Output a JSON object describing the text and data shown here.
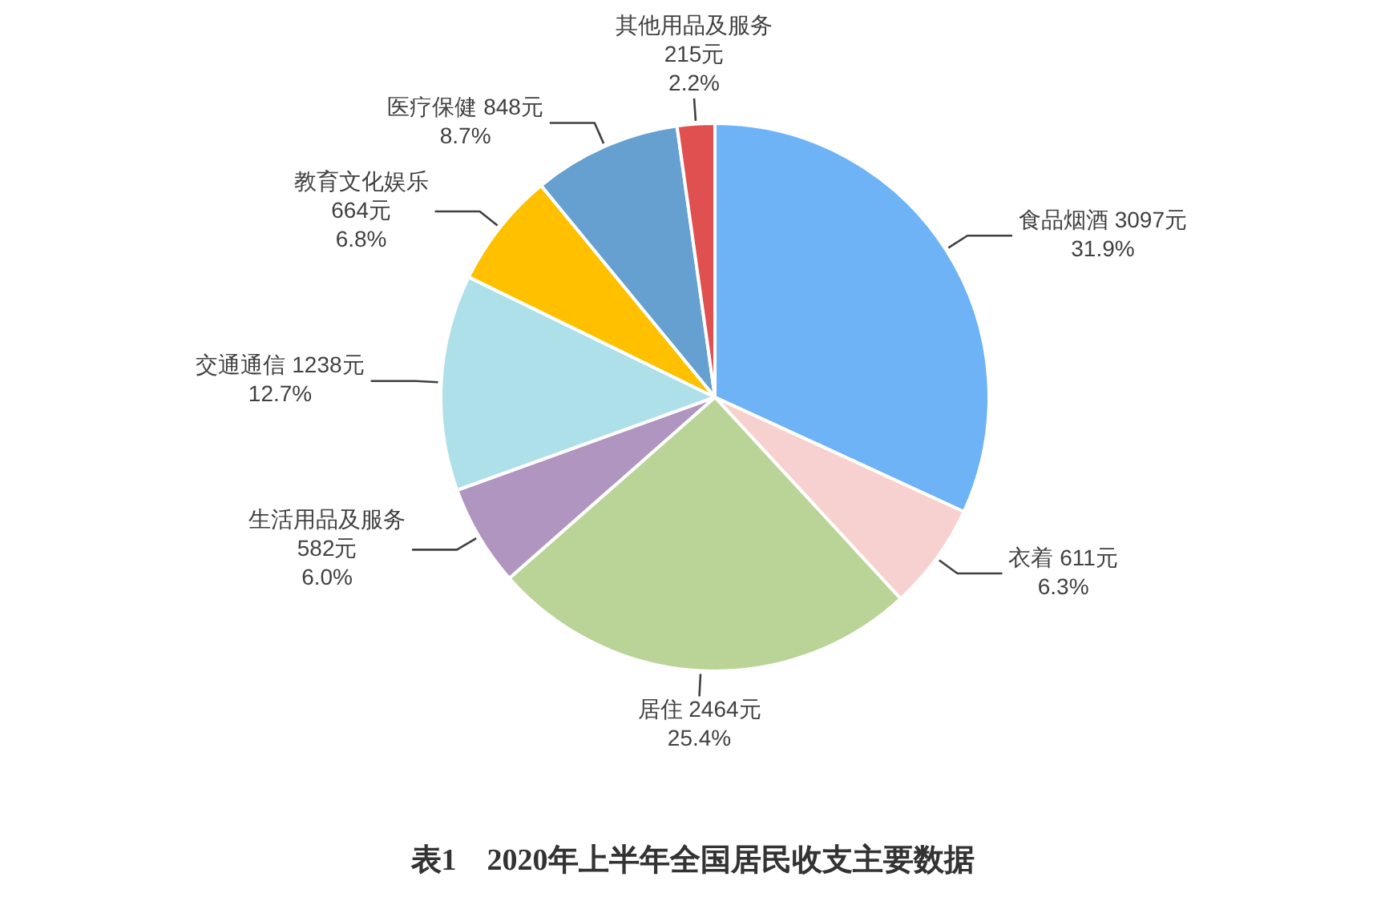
{
  "chart_data": {
    "type": "pie",
    "title": "表1　2020年上半年全国居民收支主要数据",
    "categories": [
      "食品烟酒",
      "衣着",
      "居住",
      "生活用品及服务",
      "交通通信",
      "教育文化娱乐",
      "医疗保健",
      "其他用品及服务"
    ],
    "values": [
      3097,
      611,
      2464,
      582,
      1238,
      664,
      848,
      215
    ],
    "colors": [
      "#6eb3f6",
      "#f7d1d0",
      "#b9d496",
      "#af95bf",
      "#aee0ea",
      "#ffc000",
      "#66a0d0",
      "#e05050"
    ],
    "value_labels": [
      "3097元\n31.9%",
      "611元\n6.3%",
      "2464元\n25.4%",
      "582元\n6.0%",
      "1238元\n12.7%",
      "664元\n6.8%",
      "848元\n8.7%",
      "215元\n2.2%"
    ]
  }
}
